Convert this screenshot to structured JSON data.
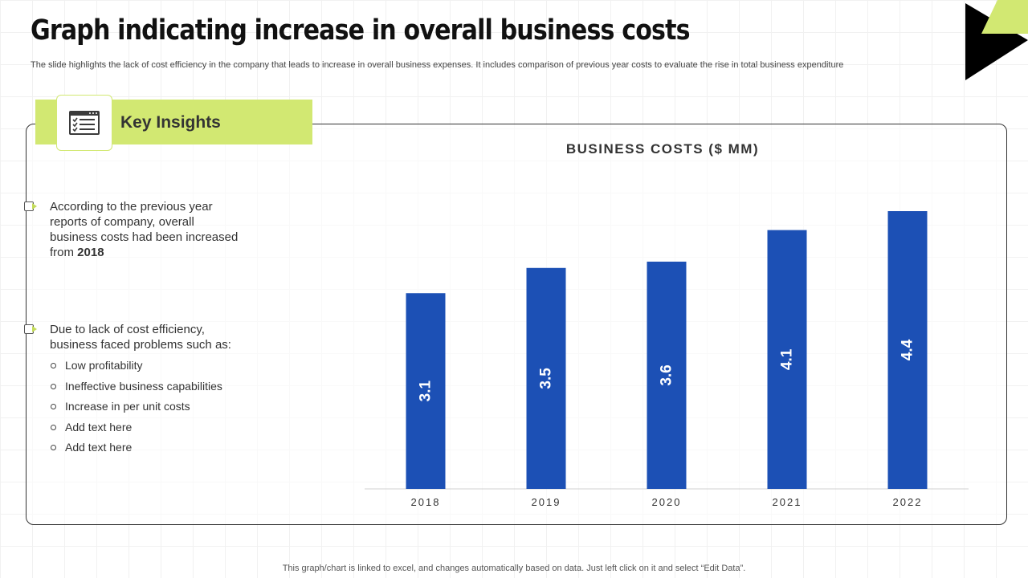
{
  "header": {
    "title": "Graph indicating increase in overall business costs",
    "subtitle": "The slide highlights the lack of cost efficiency in the company that leads to increase in overall business expenses. It includes comparison of previous year costs to evaluate the rise in total business expenditure"
  },
  "insights": {
    "label": "Key Insights",
    "icon": "checklist-icon",
    "bullet1_text": "According to the previous year reports of company, overall business costs had been increased from ",
    "bullet1_bold": "2018",
    "bullet2_text": "Due to lack of cost efficiency, business faced problems such as:",
    "sub_items": [
      "Low profitability",
      "Ineffective business capabilities",
      "Increase in per unit costs",
      "Add text here",
      "Add text here"
    ]
  },
  "colors": {
    "accent": "#d2e872",
    "bar": "#1c50b5",
    "corner_dark": "#000000"
  },
  "chart_data": {
    "type": "bar",
    "title": "BUSINESS COSTS ($ MM)",
    "categories": [
      "2018",
      "2019",
      "2020",
      "2021",
      "2022"
    ],
    "values": [
      3.1,
      3.5,
      3.6,
      4.1,
      4.4
    ],
    "ylim": [
      0,
      4.4
    ],
    "xlabel": "",
    "ylabel": "",
    "grid": false,
    "legend": "none"
  },
  "footer": {
    "note": "This graph/chart is linked to excel, and changes automatically based on data. Just left click on it and select “Edit Data”."
  }
}
